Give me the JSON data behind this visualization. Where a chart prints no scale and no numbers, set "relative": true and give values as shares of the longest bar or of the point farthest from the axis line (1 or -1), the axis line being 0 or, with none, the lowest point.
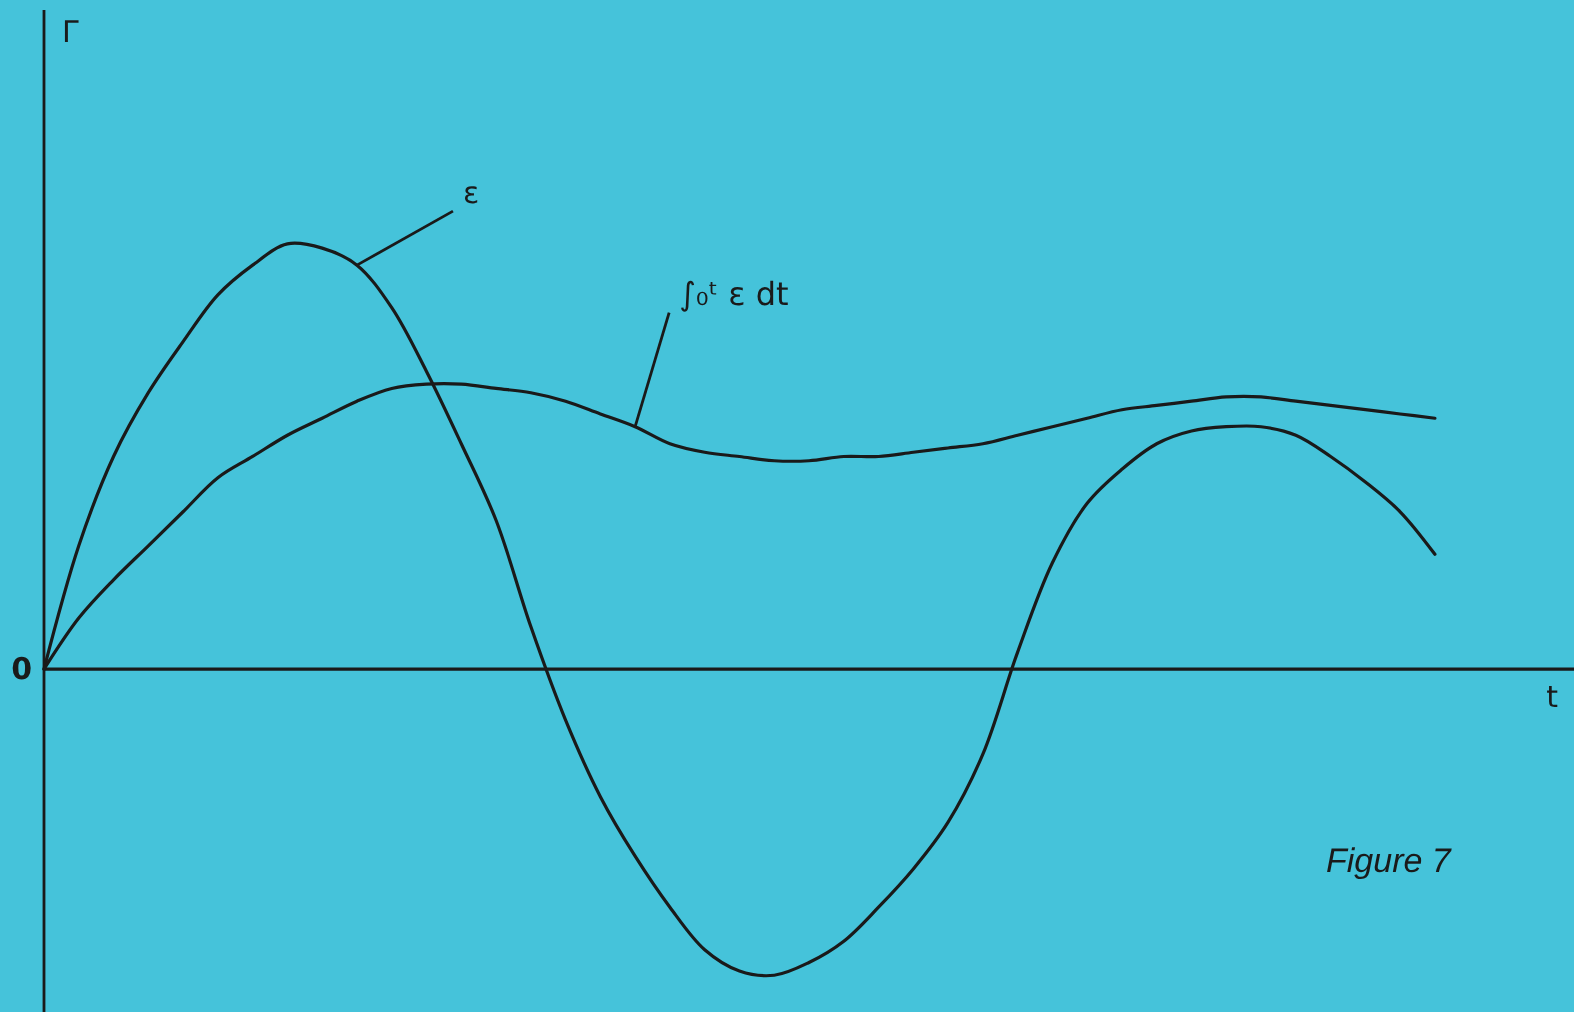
{
  "chart_data": {
    "type": "line",
    "relative": true,
    "xlabel": "t",
    "line_style": "solid",
    "categories": [
      null,
      null,
      null,
      null,
      null,
      null,
      null,
      null,
      null,
      null,
      null,
      null,
      null,
      null,
      null,
      null,
      null,
      null,
      null,
      null,
      null,
      null,
      null,
      null,
      null,
      null,
      null,
      null,
      null,
      null,
      null,
      null,
      null,
      null,
      null,
      null,
      null,
      null,
      null,
      null,
      null
    ],
    "series": [
      {
        "name": "ε",
        "color": "#1a1a1a",
        "values": [
          0,
          0.29,
          0.5,
          0.65,
          0.77,
          0.88,
          0.95,
          1.0,
          0.99,
          0.95,
          0.85,
          0.7,
          0.53,
          0.35,
          0.1,
          -0.12,
          -0.3,
          -0.44,
          -0.56,
          -0.66,
          -0.71,
          -0.72,
          -0.69,
          -0.64,
          -0.56,
          -0.47,
          -0.36,
          -0.2,
          0.04,
          0.25,
          0.39,
          0.47,
          0.53,
          0.56,
          0.57,
          0.57,
          0.55,
          0.5,
          0.44,
          0.37,
          0.27
        ]
      },
      {
        "name": "∫₀ᵗ ε dt",
        "color": "#1a1a1a",
        "values": [
          0,
          0.12,
          0.21,
          0.29,
          0.37,
          0.45,
          0.5,
          0.55,
          0.59,
          0.63,
          0.66,
          0.67,
          0.67,
          0.66,
          0.65,
          0.63,
          0.6,
          0.57,
          0.53,
          0.51,
          0.5,
          0.49,
          0.49,
          0.5,
          0.5,
          0.51,
          0.52,
          0.53,
          0.55,
          0.57,
          0.59,
          0.61,
          0.62,
          0.63,
          0.64,
          0.64,
          0.63,
          0.62,
          0.61,
          0.6,
          0.59
        ]
      }
    ],
    "annotations": [
      "Γ",
      "0",
      "Figure 7"
    ]
  }
}
